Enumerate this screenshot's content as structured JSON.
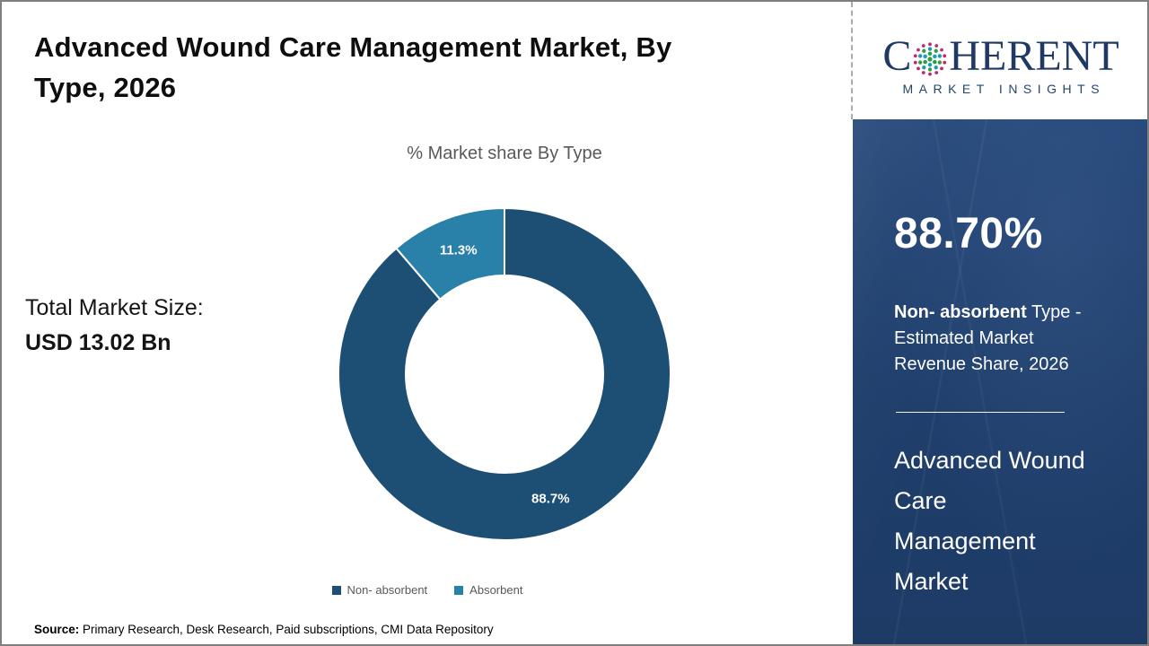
{
  "header": {
    "title": "Advanced Wound Care Management Market, By\nType, 2026"
  },
  "logo": {
    "prefix": "C",
    "suffix": "HERENT",
    "tagline": "MARKET INSIGHTS",
    "brand_navy": "#1f3864"
  },
  "main": {
    "total_market_label": "Total Market Size:",
    "total_market_value": "USD 13.02 Bn",
    "source_label": "Source:",
    "source_text": " Primary Research, Desk Research, Paid subscriptions, CMI Data Repository"
  },
  "sidebar": {
    "share_value": "88.70%",
    "share_desc_bold": "Non- absorbent",
    "share_desc_rest": " Type -\nEstimated Market\nRevenue Share, 2026",
    "market_name": "Advanced Wound\nCare\nManagement\nMarket",
    "background_navy": "#1f3e6b"
  },
  "chart_data": {
    "type": "pie",
    "title": "% Market share By Type",
    "donut": true,
    "inner_radius_ratio": 0.595,
    "start_angle_deg": -90,
    "direction": "clockwise",
    "legend_position": "bottom",
    "slice_border_color": "#ffffff",
    "label_color": "#ffffff",
    "series": [
      {
        "name": "Non- absorbent",
        "value": 88.7,
        "label": "88.7%",
        "color": "#1d4e74"
      },
      {
        "name": "Absorbent",
        "value": 11.3,
        "label": "11.3%",
        "color": "#2980a8"
      }
    ]
  }
}
